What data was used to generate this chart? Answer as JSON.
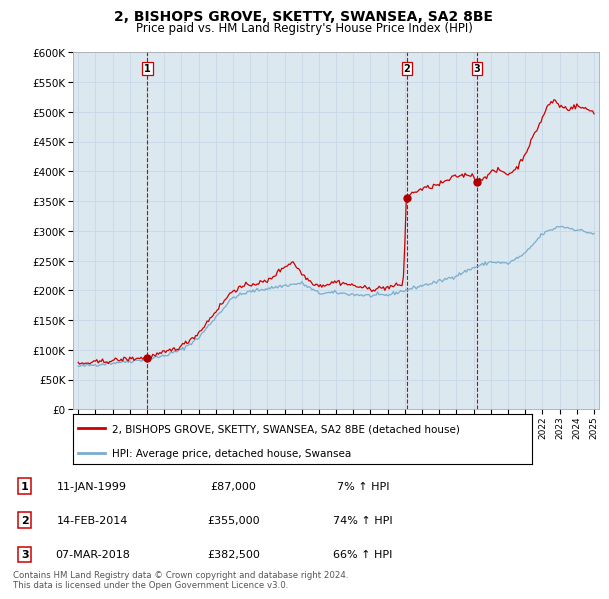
{
  "title": "2, BISHOPS GROVE, SKETTY, SWANSEA, SA2 8BE",
  "subtitle": "Price paid vs. HM Land Registry's House Price Index (HPI)",
  "title_fontsize": 10,
  "subtitle_fontsize": 8.5,
  "background_color": "#ffffff",
  "grid_color": "#c8d8e8",
  "plot_bg_color": "#dce8f0",
  "ylim": [
    0,
    600000
  ],
  "yticks": [
    0,
    50000,
    100000,
    150000,
    200000,
    250000,
    300000,
    350000,
    400000,
    450000,
    500000,
    550000,
    600000
  ],
  "ytick_labels": [
    "£0",
    "£50K",
    "£100K",
    "£150K",
    "£200K",
    "£250K",
    "£300K",
    "£350K",
    "£400K",
    "£450K",
    "£500K",
    "£550K",
    "£600K"
  ],
  "sale_prices": [
    87000,
    355000,
    382500
  ],
  "sale_labels": [
    "1",
    "2",
    "3"
  ],
  "sale_years": [
    1999.03,
    2014.12,
    2018.18
  ],
  "red_line_color": "#cc0000",
  "blue_line_color": "#7aadcc",
  "sale_marker_color": "#aa0000",
  "vline_color": "#cc0000",
  "legend_label_red": "2, BISHOPS GROVE, SKETTY, SWANSEA, SA2 8BE (detached house)",
  "legend_label_blue": "HPI: Average price, detached house, Swansea",
  "table_data": [
    {
      "num": "1",
      "date": "11-JAN-1999",
      "price": "£87,000",
      "change": "7% ↑ HPI"
    },
    {
      "num": "2",
      "date": "14-FEB-2014",
      "price": "£355,000",
      "change": "74% ↑ HPI"
    },
    {
      "num": "3",
      "date": "07-MAR-2018",
      "price": "£382,500",
      "change": "66% ↑ HPI"
    }
  ],
  "footer": "Contains HM Land Registry data © Crown copyright and database right 2024.\nThis data is licensed under the Open Government Licence v3.0."
}
